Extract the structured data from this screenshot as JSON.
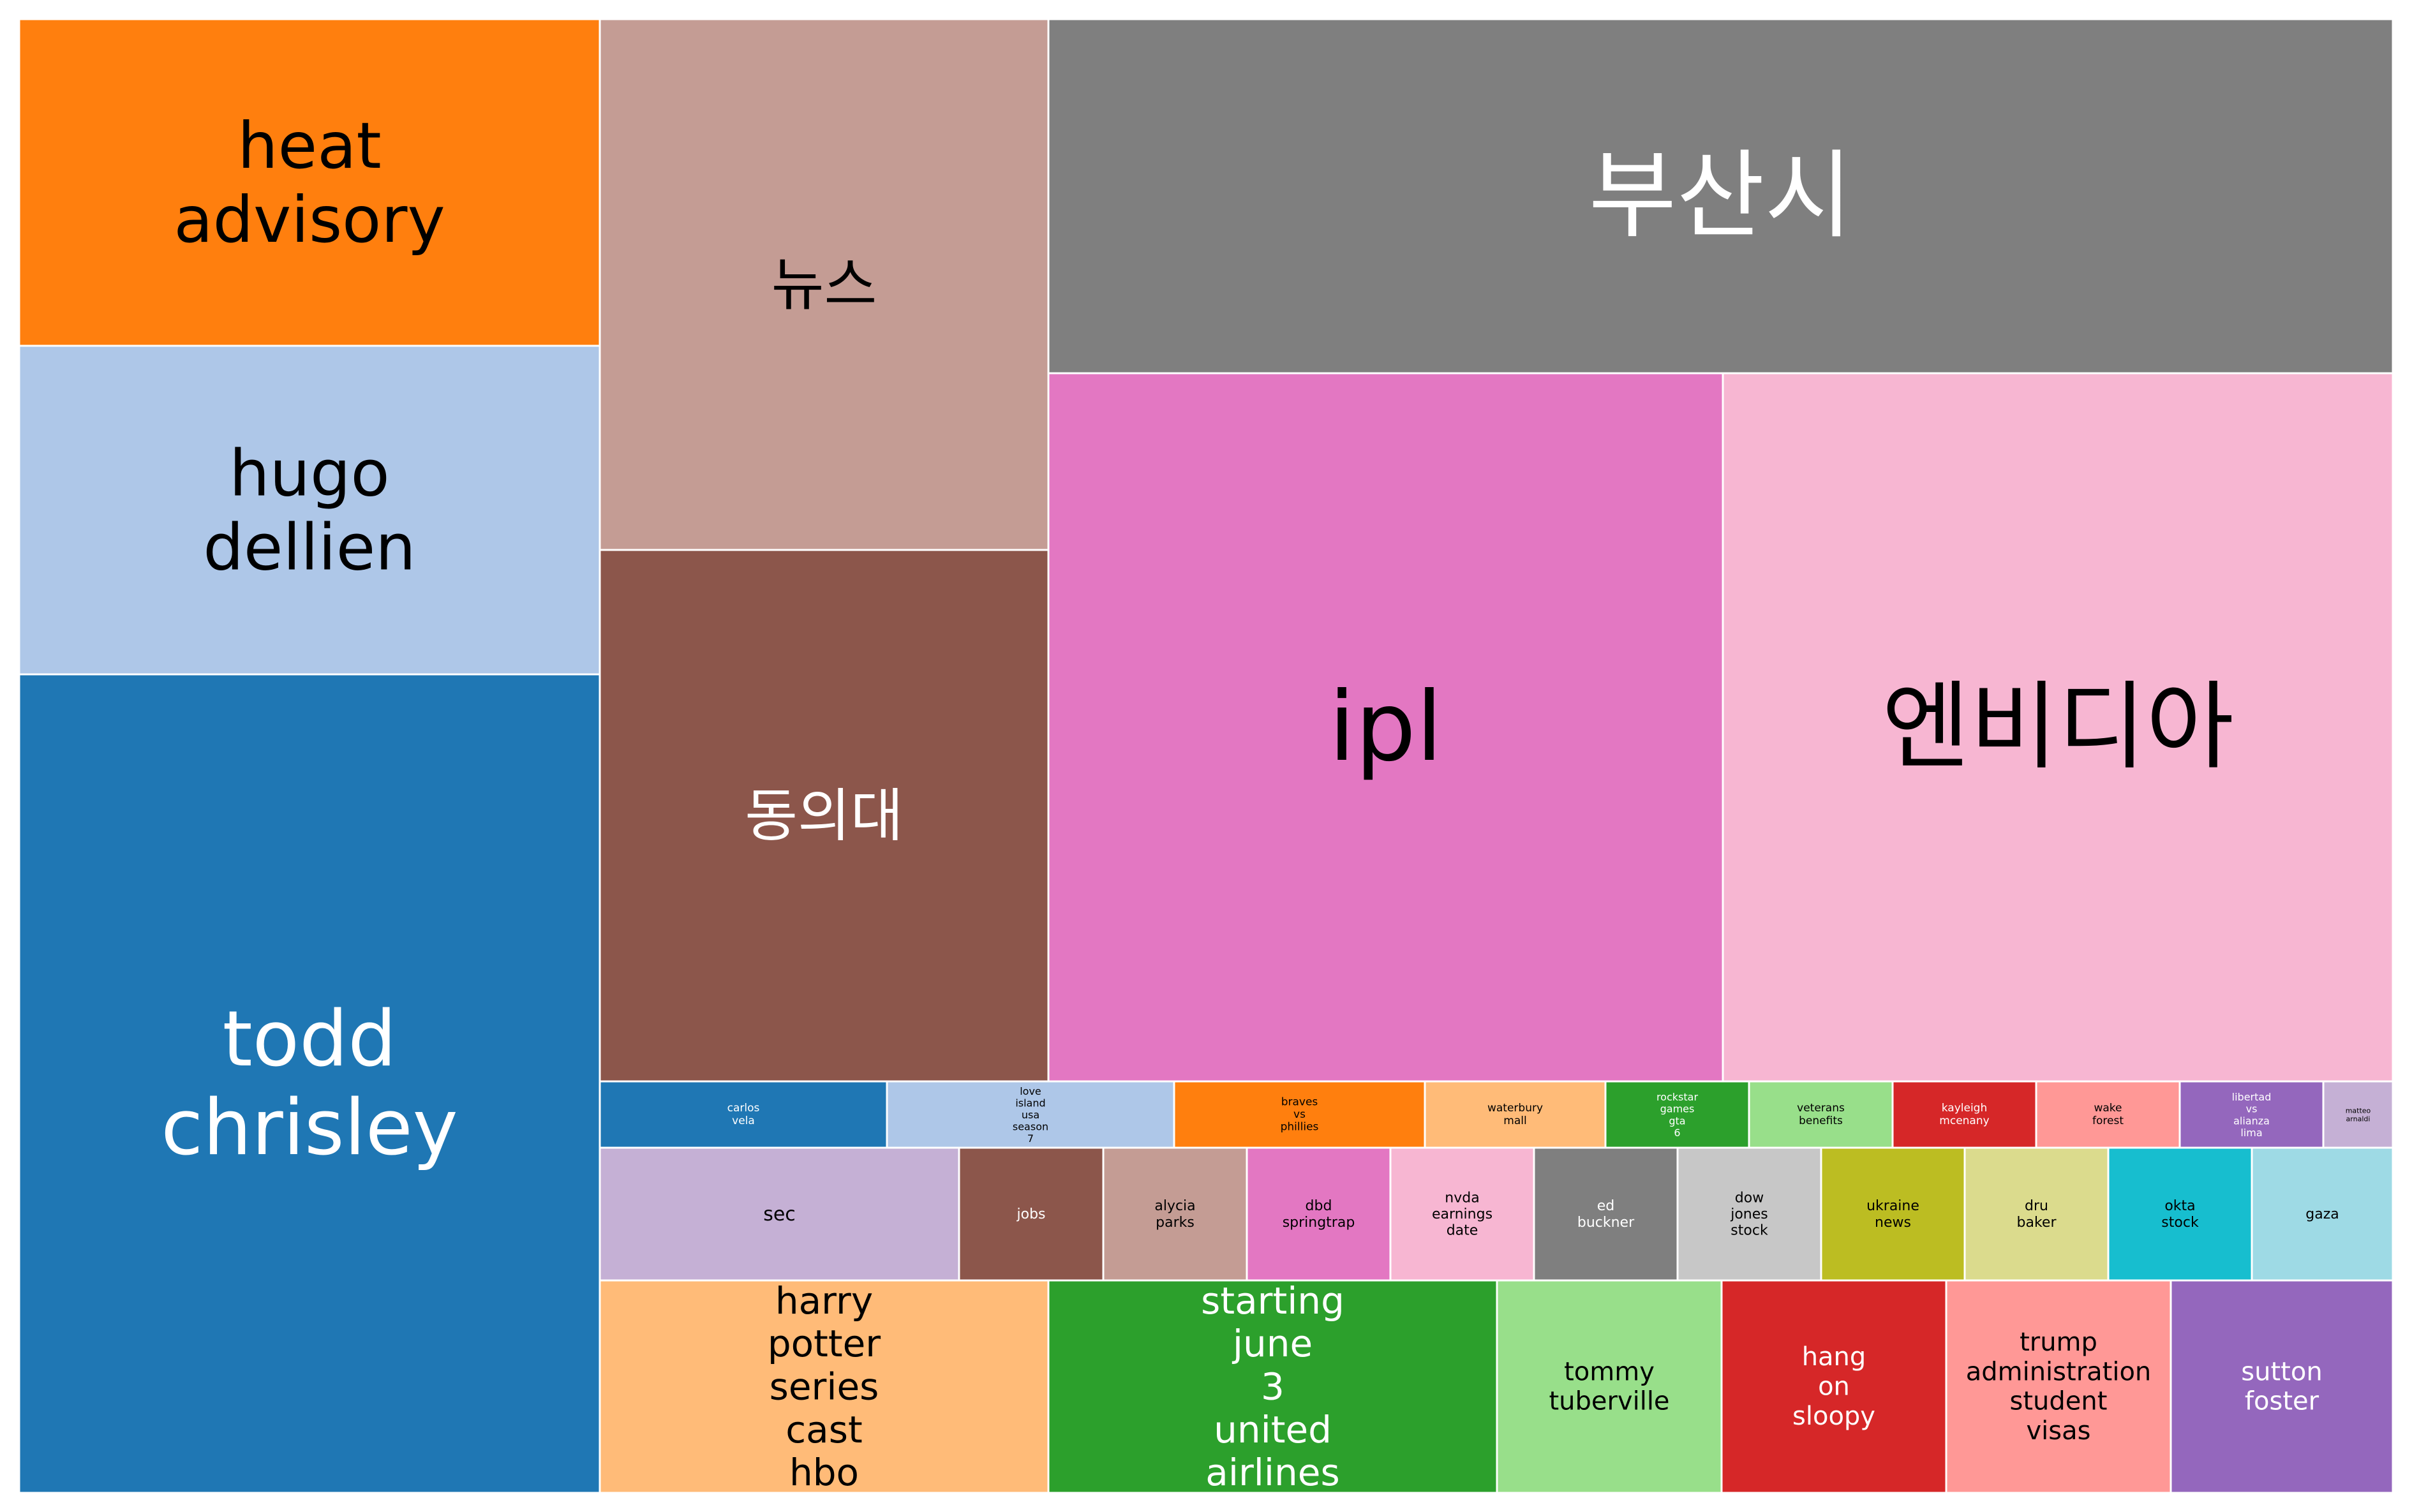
{
  "chart_data": {
    "type": "treemap",
    "title": "",
    "cells": [
      {
        "label": "heat advisory",
        "color": "#ff7f0e",
        "text_color": "#000000"
      },
      {
        "label": "hugo dellien",
        "color": "#aec7e8",
        "text_color": "#000000"
      },
      {
        "label": "todd chrisley",
        "color": "#1f77b4",
        "text_color": "#ffffff"
      },
      {
        "label": "뉴스",
        "color": "#c49c94",
        "text_color": "#000000"
      },
      {
        "label": "동의대",
        "color": "#8c564b",
        "text_color": "#ffffff"
      },
      {
        "label": "부산시",
        "color": "#7f7f7f",
        "text_color": "#ffffff"
      },
      {
        "label": "ipl",
        "color": "#e377c2",
        "text_color": "#000000"
      },
      {
        "label": "엔비디아",
        "color": "#f7b6d2",
        "text_color": "#000000"
      },
      {
        "label": "carlos vela",
        "color": "#1f77b4",
        "text_color": "#ffffff"
      },
      {
        "label": "love island usa season 7",
        "color": "#aec7e8",
        "text_color": "#000000"
      },
      {
        "label": "braves vs phillies",
        "color": "#ff7f0e",
        "text_color": "#000000"
      },
      {
        "label": "waterbury mall",
        "color": "#ffbb78",
        "text_color": "#000000"
      },
      {
        "label": "rockstar games gta 6",
        "color": "#2ca02c",
        "text_color": "#ffffff"
      },
      {
        "label": "veterans benefits",
        "color": "#98df8a",
        "text_color": "#000000"
      },
      {
        "label": "kayleigh mcenany",
        "color": "#d62728",
        "text_color": "#ffffff"
      },
      {
        "label": "wake forest",
        "color": "#ff9896",
        "text_color": "#000000"
      },
      {
        "label": "libertad vs alianza lima",
        "color": "#9467bd",
        "text_color": "#ffffff"
      },
      {
        "label": "matteo arnaldi",
        "color": "#c5b0d5",
        "text_color": "#000000"
      },
      {
        "label": "sec",
        "color": "#c5b0d5",
        "text_color": "#000000"
      },
      {
        "label": "jobs",
        "color": "#8c564b",
        "text_color": "#ffffff"
      },
      {
        "label": "alycia parks",
        "color": "#c49c94",
        "text_color": "#000000"
      },
      {
        "label": "dbd springtrap",
        "color": "#e377c2",
        "text_color": "#000000"
      },
      {
        "label": "nvda earnings date",
        "color": "#f7b6d2",
        "text_color": "#000000"
      },
      {
        "label": "ed buckner",
        "color": "#7f7f7f",
        "text_color": "#ffffff"
      },
      {
        "label": "dow jones stock",
        "color": "#c7c7c7",
        "text_color": "#000000"
      },
      {
        "label": "ukraine news",
        "color": "#bcbd22",
        "text_color": "#000000"
      },
      {
        "label": "dru baker",
        "color": "#dbdb8d",
        "text_color": "#000000"
      },
      {
        "label": "okta stock",
        "color": "#17becf",
        "text_color": "#000000"
      },
      {
        "label": "gaza",
        "color": "#9edae5",
        "text_color": "#000000"
      },
      {
        "label": "harry potter series cast hbo",
        "color": "#ffbb78",
        "text_color": "#000000"
      },
      {
        "label": "starting june 3 united airlines",
        "color": "#2ca02c",
        "text_color": "#ffffff"
      },
      {
        "label": "tommy tuberville",
        "color": "#98df8a",
        "text_color": "#000000"
      },
      {
        "label": "hang on sloopy",
        "color": "#d62728",
        "text_color": "#ffffff"
      },
      {
        "label": "trump administration student visas",
        "color": "#ff9896",
        "text_color": "#000000"
      },
      {
        "label": "sutton foster",
        "color": "#9467bd",
        "text_color": "#ffffff"
      }
    ]
  }
}
